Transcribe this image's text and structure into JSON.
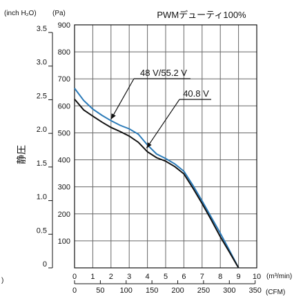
{
  "chart_data": {
    "type": "line",
    "title": "PWMデューティ100%",
    "ylabel": "静圧",
    "ylabel_pa_unit": "(Pa)",
    "ylabel_inch_unit": "(inch H₂O)",
    "xlabel_m3_unit": "(m³/min)",
    "xlabel_cfm_unit": "(CFM)",
    "stray_mark": ")",
    "xlim_m3min": [
      0,
      10
    ],
    "ylim_pa": [
      0,
      900
    ],
    "grid": true,
    "x_ticks_m3min": [
      "0",
      "1",
      "2",
      "3",
      "4",
      "5",
      "6",
      "7",
      "8",
      "9",
      "10"
    ],
    "x_ticks_cfm": [
      "0",
      "50",
      "100",
      "150",
      "200",
      "250",
      "300",
      "350"
    ],
    "y_ticks_pa": [
      "100",
      "200",
      "300",
      "400",
      "500",
      "600",
      "700",
      "800",
      "900"
    ],
    "y_ticks_inch": [
      "0",
      "0.5",
      "1.0",
      "1.5",
      "2.0",
      "2.5",
      "3.0",
      "3.5"
    ],
    "series": [
      {
        "name": "48 V/55.2 V",
        "color": "#2a7ab8",
        "x": [
          0,
          0.5,
          1,
          1.5,
          2,
          2.5,
          3,
          3.5,
          4,
          4.5,
          5,
          5.5,
          6,
          6.5,
          7,
          7.5,
          8,
          8.5,
          9
        ],
        "y": [
          665,
          620,
          588,
          565,
          545,
          528,
          515,
          495,
          455,
          422,
          405,
          385,
          358,
          305,
          248,
          188,
          128,
          65,
          0
        ]
      },
      {
        "name": "40.8 V",
        "color": "#111111",
        "x": [
          0,
          0.5,
          1,
          1.5,
          2,
          2.5,
          3,
          3.5,
          4,
          4.5,
          5,
          5.5,
          6,
          6.5,
          7,
          7.5,
          8,
          8.5,
          9
        ],
        "y": [
          625,
          585,
          562,
          540,
          520,
          505,
          488,
          465,
          430,
          408,
          395,
          375,
          348,
          295,
          238,
          178,
          115,
          58,
          0
        ]
      }
    ]
  }
}
